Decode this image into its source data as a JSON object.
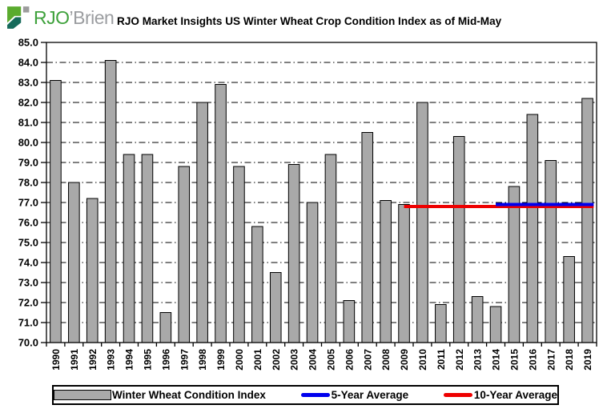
{
  "logo": {
    "rjo": "RJO",
    "brien": "’Brien"
  },
  "title": "RJO Market Insights US Winter Wheat Crop Condition Index as of Mid-May",
  "legend": {
    "bar_label": "Winter Wheat Condition Index",
    "avg5_label": "5-Year Average",
    "avg10_label": "10-Year Average"
  },
  "colors": {
    "bar_fill": "#a9a9a9",
    "bar_border": "#000000",
    "avg5_line": "#0000ee",
    "avg10_line": "#ee0000",
    "grid": "#000000",
    "logo_green": "#3ea13b",
    "logo_light_green": "#5aab2e",
    "logo_teal": "#166a5a",
    "logo_gray": "#9b9da0"
  },
  "chart_data": {
    "type": "bar",
    "title": "RJO Market Insights US Winter Wheat Crop Condition Index as of Mid-May",
    "categories": [
      "1990",
      "1991",
      "1992",
      "1993",
      "1994",
      "1995",
      "1996",
      "1997",
      "1998",
      "1999",
      "2000",
      "2001",
      "2002",
      "2003",
      "2004",
      "2005",
      "2006",
      "2007",
      "2008",
      "2009",
      "2010",
      "2011",
      "2012",
      "2013",
      "2014",
      "2015",
      "2016",
      "2017",
      "2018",
      "2019"
    ],
    "series": [
      {
        "name": "Winter Wheat Condition Index",
        "style": "bar",
        "color": "#a9a9a9",
        "values": [
          83.1,
          78.0,
          77.2,
          84.1,
          79.4,
          79.4,
          71.5,
          78.8,
          82.0,
          82.9,
          78.8,
          75.8,
          73.5,
          78.9,
          77.0,
          79.4,
          72.1,
          80.5,
          77.1,
          76.9,
          82.0,
          71.9,
          80.3,
          72.3,
          71.8,
          77.8,
          81.4,
          79.1,
          74.3,
          82.2
        ]
      }
    ],
    "avg_lines": [
      {
        "name": "10-Year Average",
        "value": 76.8,
        "start_year": "2009",
        "end_year": "2019",
        "color": "#ee0000"
      },
      {
        "name": "5-Year Average",
        "value": 76.9,
        "start_year": "2014",
        "end_year": "2019",
        "color": "#0000ee"
      }
    ],
    "xlabel": "",
    "ylabel": "",
    "ylim": [
      70.0,
      85.0
    ],
    "ytick_step": 1.0,
    "ytick_format": "one_decimal",
    "grid": "horizontal dash-dot",
    "legend_position": "bottom"
  }
}
